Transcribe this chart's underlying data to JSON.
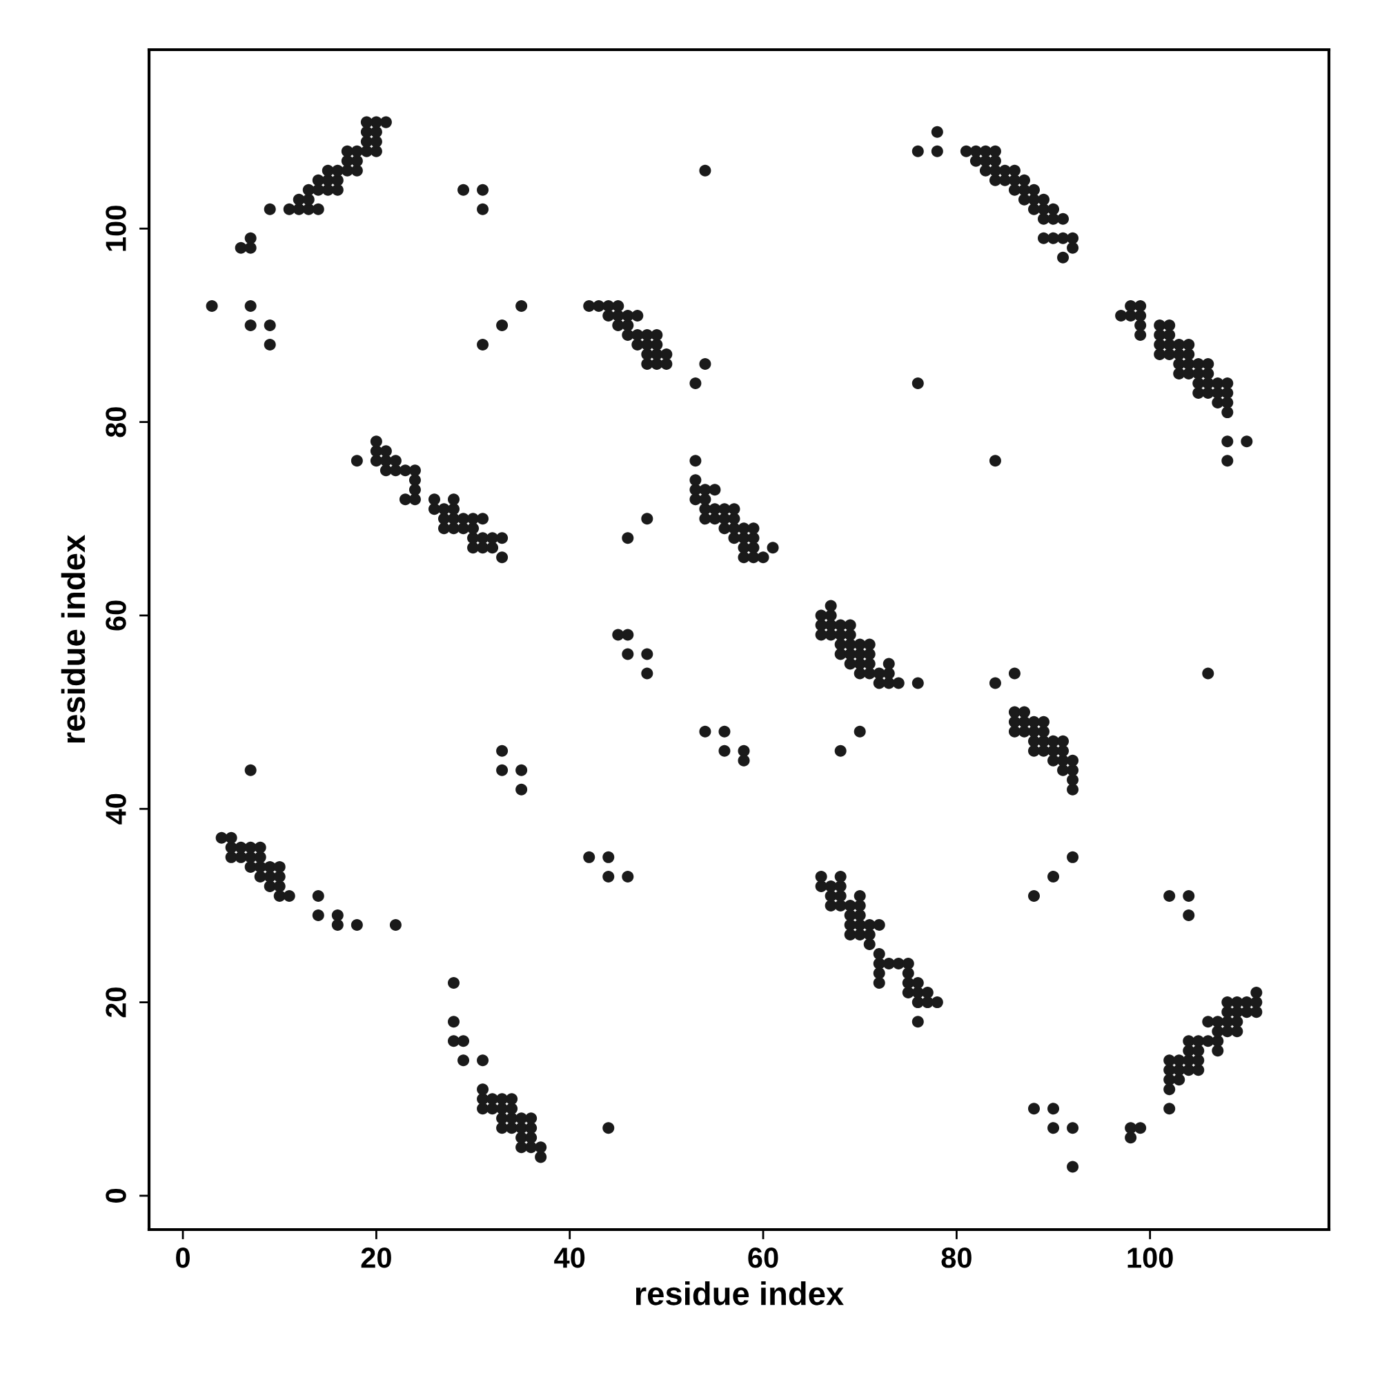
{
  "chart_data": {
    "type": "scatter",
    "xlabel": "residue index",
    "ylabel": "residue index",
    "xlim": [
      -3.5,
      118.5
    ],
    "ylim": [
      -3.5,
      118.5
    ],
    "xticks": [
      0,
      20,
      40,
      60,
      80,
      100
    ],
    "yticks": [
      0,
      20,
      40,
      60,
      80,
      100
    ],
    "grid": false,
    "marker": "circle",
    "series": [
      {
        "color": "#1a1a1a",
        "x": [
          9,
          11,
          12,
          12,
          13,
          13,
          13,
          14,
          14,
          14,
          15,
          15,
          15,
          16,
          16,
          16,
          17,
          17,
          17,
          18,
          18,
          18,
          19,
          19,
          19,
          20,
          20,
          20,
          20,
          21,
          19,
          6,
          7,
          7,
          3,
          7,
          7,
          9,
          9,
          29,
          31,
          31,
          31,
          33,
          35,
          54,
          53,
          54,
          76,
          84,
          76,
          78,
          78,
          81,
          82,
          82,
          83,
          83,
          83,
          84,
          84,
          84,
          84,
          85,
          85,
          86,
          86,
          86,
          87,
          87,
          87,
          88,
          88,
          88,
          89,
          89,
          89,
          90,
          90,
          91,
          91,
          92,
          92,
          91,
          90,
          89,
          42,
          43,
          44,
          44,
          45,
          45,
          45,
          46,
          46,
          46,
          47,
          47,
          47,
          48,
          48,
          48,
          48,
          49,
          49,
          49,
          49,
          50,
          50,
          97,
          98,
          98,
          99,
          99,
          99,
          99,
          101,
          101,
          101,
          101,
          102,
          102,
          102,
          102,
          103,
          103,
          103,
          103,
          104,
          104,
          104,
          104,
          105,
          105,
          105,
          105,
          106,
          106,
          106,
          106,
          107,
          107,
          107,
          108,
          108,
          108,
          108,
          108,
          108,
          110,
          18,
          20,
          20,
          20,
          21,
          21,
          21,
          22,
          22,
          23,
          23,
          24,
          24,
          24,
          24,
          26,
          26,
          27,
          27,
          27,
          28,
          28,
          28,
          28,
          29,
          29,
          30,
          30,
          30,
          30,
          31,
          31,
          31,
          32,
          32,
          33,
          33,
          46,
          48,
          53,
          53,
          53,
          53,
          54,
          54,
          54,
          54,
          55,
          55,
          55,
          56,
          56,
          56,
          57,
          57,
          57,
          57,
          58,
          58,
          58,
          58,
          59,
          59,
          59,
          59,
          60,
          61,
          66,
          66,
          66,
          67,
          67,
          67,
          67,
          68,
          68,
          68,
          68,
          69,
          69,
          69,
          69,
          69,
          70,
          70,
          70,
          70,
          71,
          71,
          71,
          71,
          72,
          72,
          73,
          73,
          73,
          74,
          76,
          45,
          46,
          46,
          48,
          48,
          84,
          86,
          106,
          54,
          56,
          56,
          58,
          58,
          68,
          70,
          33,
          33,
          35,
          35,
          7,
          86,
          86,
          86,
          87,
          87,
          87,
          88,
          88,
          88,
          88,
          89,
          89,
          89,
          89,
          90,
          90,
          90,
          91,
          91,
          91,
          91,
          92,
          92,
          92,
          92,
          4,
          5,
          5,
          5,
          6,
          6,
          7,
          7,
          7,
          8,
          8,
          8,
          8,
          9,
          9,
          9,
          10,
          10,
          10,
          10,
          11,
          14,
          14,
          16,
          16,
          18,
          22,
          42,
          44,
          44,
          46,
          88,
          90,
          92,
          102,
          104,
          104,
          66,
          66,
          67,
          67,
          67,
          68,
          68,
          68,
          68,
          69,
          69,
          69,
          69,
          70,
          70,
          70,
          70,
          70,
          71,
          71,
          71,
          72,
          72,
          72,
          72,
          72,
          73,
          74,
          75,
          75,
          75,
          75,
          76,
          76,
          76,
          76,
          77,
          77,
          78,
          28,
          28,
          28,
          29,
          29,
          31,
          31,
          31,
          31,
          32,
          32,
          33,
          33,
          33,
          33,
          34,
          34,
          34,
          34,
          35,
          35,
          35,
          35,
          36,
          36,
          36,
          36,
          37,
          37,
          44,
          88,
          90,
          90,
          92,
          92,
          98,
          98,
          99,
          102,
          102,
          102,
          102,
          102,
          103,
          103,
          103,
          104,
          104,
          104,
          104,
          105,
          105,
          105,
          105,
          106,
          106,
          107,
          107,
          107,
          107,
          108,
          108,
          108,
          108,
          109,
          109,
          109,
          109,
          110,
          110,
          111,
          111,
          111
        ],
        "values": [
          102,
          102,
          102,
          103,
          102,
          103,
          104,
          102,
          104,
          105,
          104,
          105,
          106,
          104,
          105,
          106,
          106,
          107,
          108,
          106,
          107,
          108,
          108,
          109,
          110,
          108,
          109,
          110,
          111,
          111,
          111,
          98,
          98,
          99,
          92,
          92,
          90,
          90,
          88,
          104,
          104,
          102,
          88,
          90,
          92,
          106,
          84,
          86,
          84,
          76,
          108,
          108,
          110,
          108,
          107,
          108,
          106,
          107,
          108,
          105,
          106,
          107,
          108,
          105,
          106,
          104,
          105,
          106,
          103,
          104,
          105,
          102,
          103,
          104,
          101,
          102,
          103,
          101,
          102,
          99,
          101,
          98,
          99,
          97,
          99,
          99,
          92,
          92,
          91,
          92,
          90,
          91,
          92,
          89,
          90,
          91,
          88,
          89,
          91,
          86,
          87,
          88,
          89,
          86,
          87,
          88,
          89,
          86,
          87,
          91,
          91,
          92,
          89,
          90,
          91,
          92,
          87,
          88,
          89,
          90,
          87,
          88,
          89,
          90,
          85,
          86,
          87,
          88,
          85,
          86,
          87,
          88,
          83,
          84,
          85,
          86,
          83,
          84,
          85,
          86,
          82,
          83,
          84,
          81,
          82,
          83,
          84,
          78,
          76,
          78,
          76,
          76,
          77,
          78,
          75,
          76,
          77,
          75,
          76,
          72,
          75,
          72,
          73,
          74,
          75,
          71,
          72,
          69,
          70,
          71,
          69,
          70,
          71,
          72,
          69,
          70,
          67,
          68,
          69,
          70,
          67,
          68,
          70,
          67,
          68,
          66,
          68,
          68,
          70,
          76,
          72,
          73,
          74,
          70,
          71,
          72,
          73,
          70,
          71,
          73,
          69,
          70,
          71,
          68,
          69,
          70,
          71,
          66,
          67,
          68,
          69,
          66,
          67,
          68,
          69,
          66,
          67,
          58,
          59,
          60,
          58,
          59,
          60,
          61,
          56,
          57,
          58,
          59,
          55,
          56,
          57,
          58,
          59,
          54,
          55,
          56,
          57,
          54,
          55,
          56,
          57,
          53,
          54,
          53,
          54,
          55,
          53,
          53,
          58,
          58,
          56,
          56,
          54,
          53,
          54,
          54,
          48,
          48,
          46,
          46,
          45,
          46,
          48,
          46,
          44,
          44,
          42,
          44,
          48,
          49,
          50,
          48,
          49,
          50,
          46,
          47,
          48,
          49,
          46,
          47,
          48,
          49,
          45,
          46,
          47,
          44,
          45,
          46,
          47,
          42,
          43,
          44,
          45,
          37,
          35,
          36,
          37,
          35,
          36,
          34,
          35,
          36,
          33,
          34,
          35,
          36,
          32,
          33,
          34,
          31,
          32,
          33,
          34,
          31,
          31,
          29,
          29,
          28,
          28,
          28,
          35,
          35,
          33,
          33,
          31,
          33,
          35,
          31,
          31,
          29,
          32,
          33,
          30,
          31,
          32,
          30,
          31,
          32,
          33,
          27,
          28,
          29,
          30,
          27,
          28,
          29,
          30,
          31,
          26,
          27,
          28,
          22,
          23,
          24,
          25,
          28,
          24,
          24,
          21,
          22,
          23,
          24,
          18,
          20,
          21,
          22,
          20,
          21,
          20,
          22,
          18,
          16,
          16,
          14,
          14,
          9,
          10,
          11,
          9,
          10,
          7,
          8,
          9,
          10,
          7,
          8,
          9,
          10,
          5,
          6,
          7,
          8,
          5,
          6,
          7,
          8,
          4,
          5,
          7,
          9,
          9,
          7,
          7,
          3,
          6,
          7,
          7,
          9,
          11,
          12,
          13,
          14,
          12,
          13,
          14,
          13,
          14,
          15,
          16,
          13,
          14,
          15,
          16,
          16,
          18,
          15,
          16,
          17,
          18,
          17,
          18,
          19,
          20,
          17,
          18,
          19,
          20,
          19,
          20,
          19,
          20,
          21
        ]
      }
    ]
  }
}
